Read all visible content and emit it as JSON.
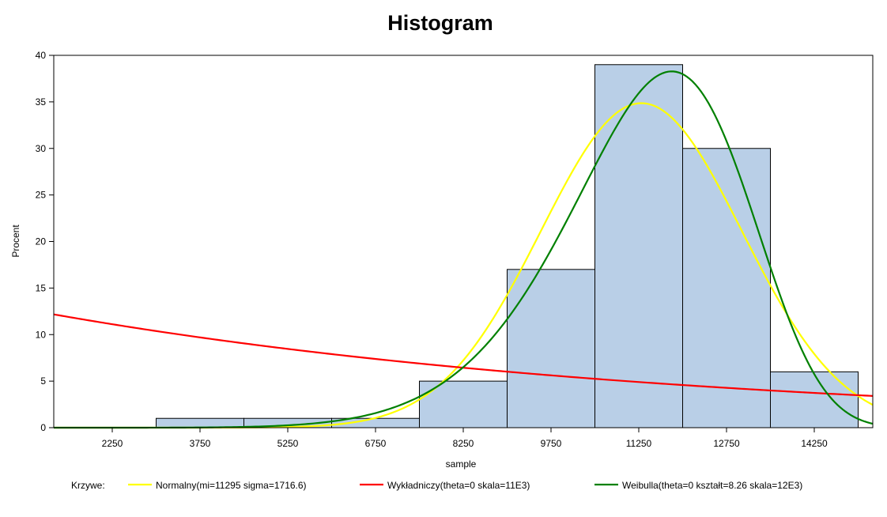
{
  "chart_data": {
    "type": "histogram",
    "title": "Histogram",
    "xlabel": "sample",
    "ylabel": "Procent",
    "xlim": [
      1250,
      15250
    ],
    "ylim": [
      0,
      40
    ],
    "x_ticks": [
      2250,
      3750,
      5250,
      6750,
      8250,
      9750,
      11250,
      12750,
      14250
    ],
    "y_ticks": [
      0,
      5,
      10,
      15,
      20,
      25,
      30,
      35,
      40
    ],
    "bin_width": 1500,
    "bins": [
      {
        "x": 3750,
        "value": 1
      },
      {
        "x": 5250,
        "value": 1
      },
      {
        "x": 6750,
        "value": 1
      },
      {
        "x": 8250,
        "value": 5
      },
      {
        "x": 9750,
        "value": 17
      },
      {
        "x": 11250,
        "value": 39
      },
      {
        "x": 12750,
        "value": 30
      },
      {
        "x": 14250,
        "value": 6
      }
    ],
    "bar_color": "#b9cfe7",
    "legend": {
      "label": "Krzywe:",
      "placement": "bottom"
    },
    "series": [
      {
        "name": "Normalny(mi=11295 sigma=1716.6)",
        "type": "normal",
        "mu": 11295,
        "sigma": 1716.6,
        "color": "#ffff00"
      },
      {
        "name": "Wykładniczy(theta=0 skala=11E3)",
        "type": "exponential",
        "theta": 0,
        "scale": 11000,
        "color": "#ff0000"
      },
      {
        "name": "Weibulla(theta=0 kształt=8.26 skala=12E3)",
        "type": "weibull",
        "theta": 0,
        "shape": 8.26,
        "scale": 12000,
        "color": "#008000"
      }
    ]
  }
}
